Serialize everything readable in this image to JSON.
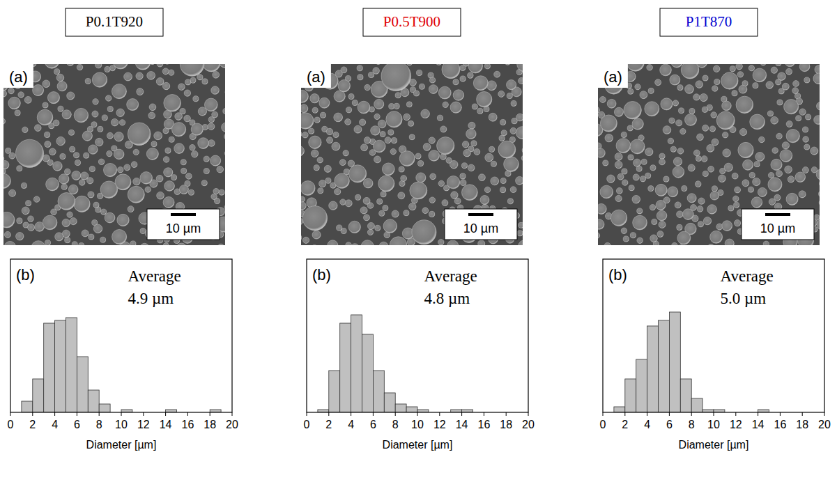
{
  "chart_data": [
    {
      "type": "histogram",
      "title": "P0.1T920",
      "bins": [
        1,
        2,
        3,
        4,
        5,
        6,
        7,
        8,
        9,
        10,
        11,
        12,
        13,
        14,
        15,
        16,
        17,
        18,
        19
      ],
      "values": [
        4,
        12,
        32,
        33,
        34,
        20,
        8,
        3,
        0,
        1,
        0,
        0,
        0,
        1,
        0,
        0,
        0,
        1
      ],
      "color": "#c0c0c0",
      "xlim": [
        0,
        20
      ],
      "xticks": [
        0,
        2,
        4,
        6,
        8,
        10,
        12,
        14,
        16,
        18,
        20
      ],
      "ylim": [
        0,
        55
      ],
      "x_label": "Diameter [µm]",
      "tick_labels": "x",
      "image": {
        "label": "(a)",
        "scale_bar": "10 µm"
      },
      "panel_label": "(b)",
      "annotations": [
        "Average",
        "4.9 µm"
      ]
    },
    {
      "type": "histogram",
      "title": "P0.5T900",
      "bins": [
        1,
        2,
        3,
        4,
        5,
        6,
        7,
        8,
        9,
        10,
        11,
        12,
        13,
        14,
        15,
        16,
        17,
        18,
        19
      ],
      "values": [
        1,
        15,
        32,
        35,
        28,
        15,
        7,
        3,
        2,
        1,
        0,
        0,
        1,
        1,
        0,
        0,
        0,
        0
      ],
      "color": "#c0c0c0",
      "xlim": [
        0,
        20
      ],
      "xticks": [
        0,
        2,
        4,
        6,
        8,
        10,
        12,
        14,
        16,
        18,
        20
      ],
      "ylim": [
        0,
        55
      ],
      "x_label": "Diameter [µm]",
      "tick_labels": "x",
      "image": {
        "label": "(a)",
        "scale_bar": "10 µm"
      },
      "panel_label": "(b)",
      "annotations": [
        "Average",
        "4.8 µm"
      ]
    },
    {
      "type": "histogram",
      "title": "P1T870",
      "bins": [
        1,
        2,
        3,
        4,
        5,
        6,
        7,
        8,
        9,
        10,
        11,
        12,
        13,
        14,
        15,
        16,
        17,
        18,
        19
      ],
      "values": [
        2,
        12,
        19,
        31,
        33,
        36,
        12,
        5,
        1,
        1,
        0,
        0,
        0,
        1,
        0,
        0,
        0,
        0
      ],
      "color": "#c0c0c0",
      "xlim": [
        0,
        20
      ],
      "xticks": [
        0,
        2,
        4,
        6,
        8,
        10,
        12,
        14,
        16,
        18,
        20
      ],
      "ylim": [
        0,
        55
      ],
      "x_label": "Diameter [µm]",
      "tick_labels": "x",
      "image": {
        "label": "(a)",
        "scale_bar": "10 µm"
      },
      "panel_label": "(b)",
      "annotations": [
        "Average",
        "5.0 µm"
      ]
    }
  ]
}
